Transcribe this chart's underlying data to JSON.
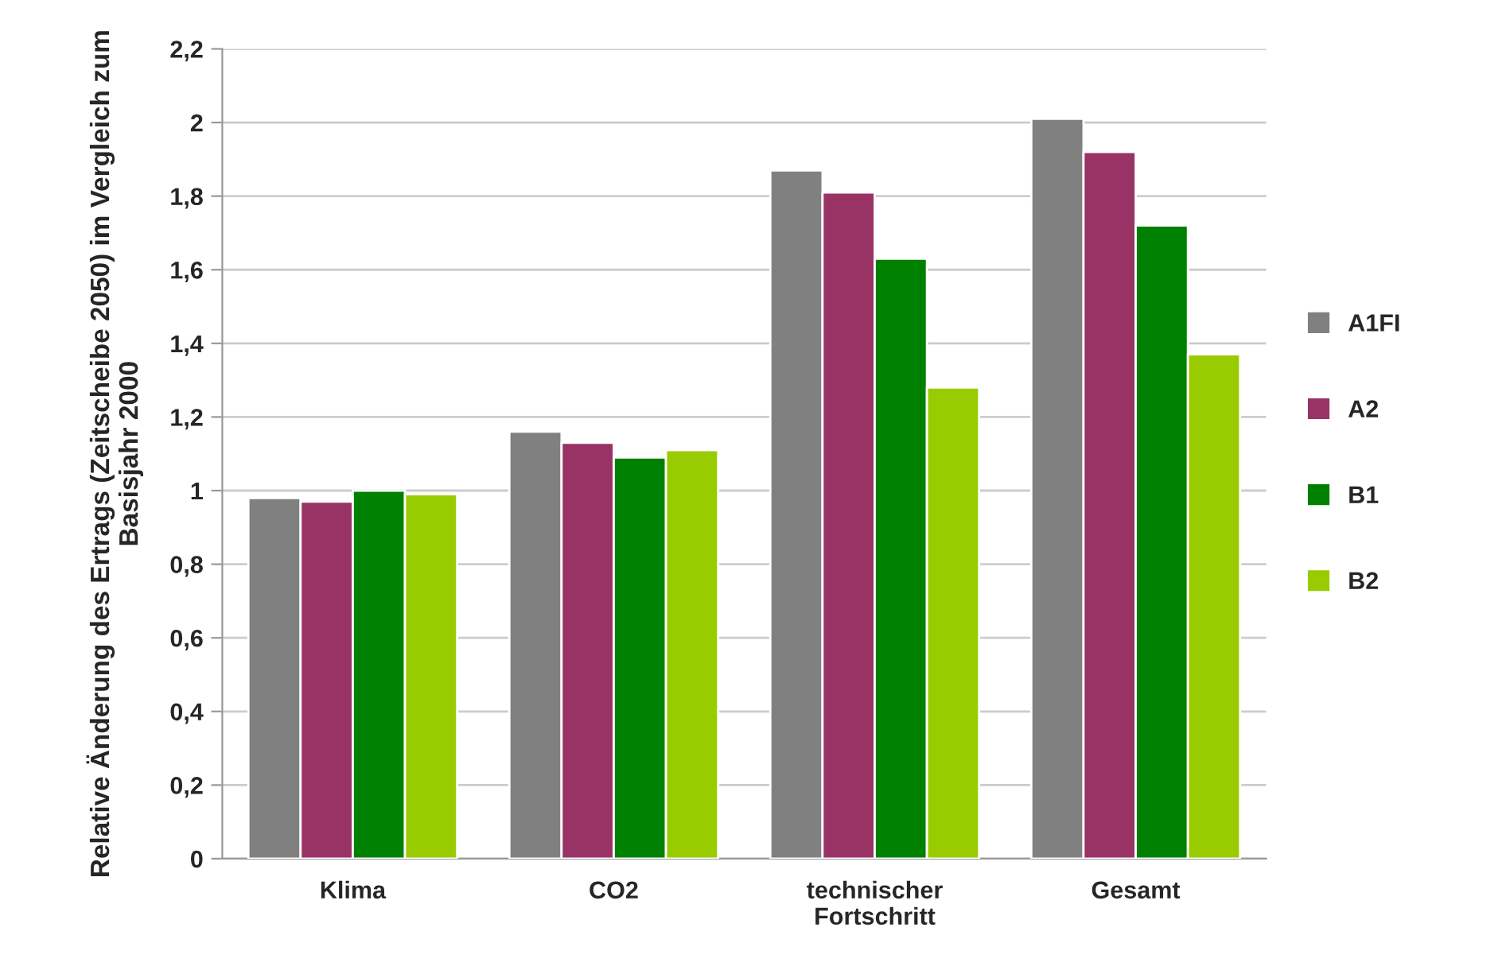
{
  "chart_data": {
    "type": "bar",
    "ylabel": "Relative Änderung des Ertrags (Zeitscheibe 2050) im Vergleich zum Basisjahr 2000",
    "categories": [
      "Klima",
      "CO2",
      "technischer\nFortschritt",
      "Gesamt"
    ],
    "series": [
      {
        "name": "A1FI",
        "color": "#808080",
        "values": [
          0.98,
          1.16,
          1.87,
          2.01
        ]
      },
      {
        "name": "A2",
        "color": "#993366",
        "values": [
          0.97,
          1.13,
          1.81,
          1.92
        ]
      },
      {
        "name": "B1",
        "color": "#008000",
        "values": [
          1.0,
          1.09,
          1.63,
          1.72
        ]
      },
      {
        "name": "B2",
        "color": "#99cc00",
        "values": [
          0.99,
          1.11,
          1.28,
          1.37
        ]
      }
    ],
    "ylim": [
      0,
      2.2
    ],
    "yticks": [
      0,
      {
        "value": 0.2,
        "label": "0,2"
      },
      {
        "value": 0.4,
        "label": "0,4"
      },
      {
        "value": 0.6,
        "label": "0,6"
      },
      {
        "value": 0.8,
        "label": "0,8"
      },
      1,
      {
        "value": 1.2,
        "label": "1,2"
      },
      {
        "value": 1.4,
        "label": "1,4"
      },
      {
        "value": 1.6,
        "label": "1,6"
      },
      {
        "value": 1.8,
        "label": "1,8"
      },
      2,
      {
        "value": 2.2,
        "label": "2,2"
      }
    ],
    "grid": "y",
    "legend": "right"
  }
}
